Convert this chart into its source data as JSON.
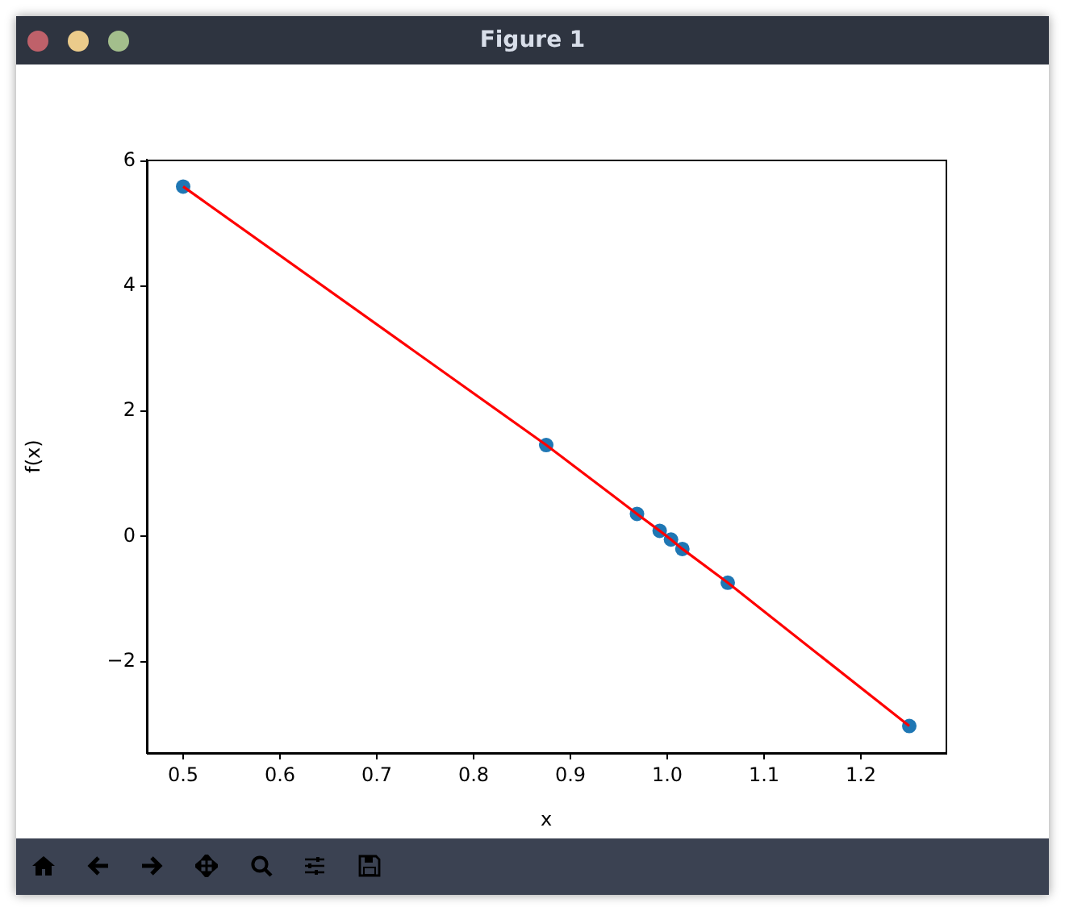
{
  "chart_data": {
    "type": "scatter",
    "xlabel": "x",
    "ylabel": "f(x)",
    "annotations": [
      "Figure 1"
    ],
    "xlim": [
      0.4625,
      1.2875
    ],
    "ylim": [
      -3.46,
      6.02
    ],
    "xticks": [
      {
        "value": 0.5,
        "label": "0.5"
      },
      {
        "value": 0.6,
        "label": "0.6"
      },
      {
        "value": 0.7,
        "label": "0.7"
      },
      {
        "value": 0.8,
        "label": "0.8"
      },
      {
        "value": 0.9,
        "label": "0.9"
      },
      {
        "value": 1.0,
        "label": "1.0"
      },
      {
        "value": 1.1,
        "label": "1.1"
      },
      {
        "value": 1.2,
        "label": "1.2"
      }
    ],
    "yticks": [
      {
        "value": -2,
        "label": "−2"
      },
      0,
      2,
      4,
      6
    ],
    "grid": false,
    "legend": false,
    "series": [
      {
        "type": "line",
        "marker": "none",
        "color": "#ff0000",
        "x": [
          0.5,
          0.875,
          0.96875,
          0.9921875,
          1.0039,
          1.0156,
          1.0625,
          1.25
        ],
        "values": [
          5.59,
          1.46,
          0.36,
          0.09,
          -0.05,
          -0.2,
          -0.74,
          -3.03
        ]
      },
      {
        "marker": "circle",
        "color": "#1f77b4",
        "x": [
          0.5,
          0.875,
          0.96875,
          0.9921875,
          1.0039,
          1.0156,
          1.0625,
          1.25
        ],
        "values": [
          5.59,
          1.46,
          0.36,
          0.09,
          -0.05,
          -0.2,
          -0.74,
          -3.03
        ]
      }
    ]
  }
}
